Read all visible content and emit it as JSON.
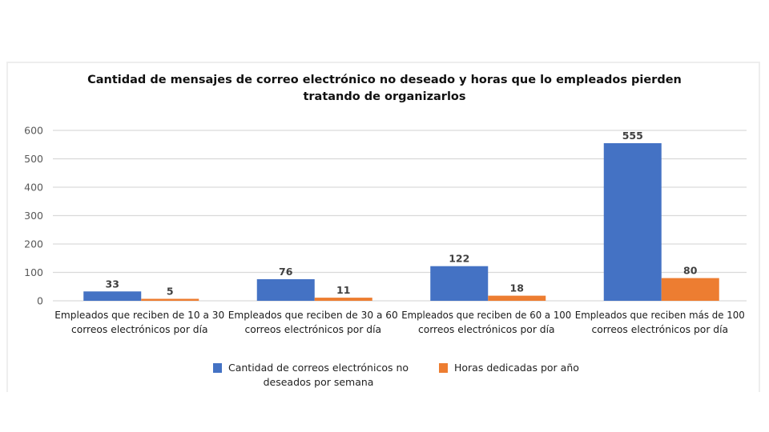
{
  "chart_data": {
    "type": "bar",
    "title": "Cantidad de mensajes de correo electrónico no deseado y horas que lo empleados pierden tratando de organizarlos",
    "title_lines": [
      "Cantidad de mensajes de correo electrónico no deseado y horas que lo empleados pierden",
      "tratando de organizarlos"
    ],
    "xlabel": "",
    "ylabel": "",
    "ylim": [
      0,
      600
    ],
    "yticks": [
      0,
      100,
      200,
      300,
      400,
      500,
      600
    ],
    "grid": true,
    "legend_position": "bottom",
    "categories": [
      "Empleados que reciben de 10 a 30 correos electrónicos por día",
      "Empleados que reciben de 30 a 60 correos electrónicos por día",
      "Empleados que reciben de 60 a 100 correos electrónicos por día",
      "Empleados que reciben más de 100 correos electrónicos por día"
    ],
    "category_lines": [
      [
        "Empleados que reciben de 10 a 30",
        "correos electrónicos por día"
      ],
      [
        "Empleados que reciben de 30 a 60",
        "correos electrónicos por día"
      ],
      [
        "Empleados que reciben de 60 a 100",
        "correos electrónicos por día"
      ],
      [
        "Empleados que reciben más de 100",
        "correos electrónicos por día"
      ]
    ],
    "series": [
      {
        "name": "Cantidad de correos electrónicos no deseados por semana",
        "legend_lines": [
          "Cantidad de correos electrónicos no",
          "deseados por semana"
        ],
        "color": "#4472c4",
        "values": [
          33,
          76,
          122,
          555
        ]
      },
      {
        "name": "Horas dedicadas por año",
        "legend_lines": [
          "Horas dedicadas por año"
        ],
        "color": "#ed7d31",
        "values": [
          5,
          11,
          18,
          80
        ]
      }
    ]
  },
  "colors": {
    "grid": "#d9d9d9",
    "tick_text": "#595959",
    "label_text": "#404040",
    "category_text": "#1a1a1a"
  }
}
